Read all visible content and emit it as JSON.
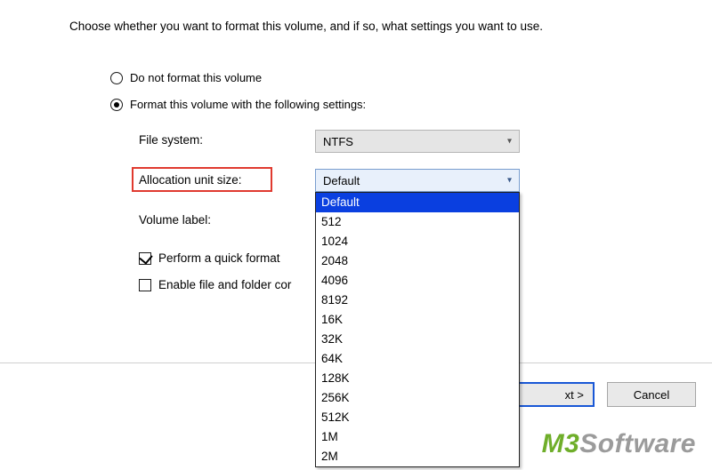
{
  "instruction": "Choose whether you want to format this volume, and if so, what settings you want to use.",
  "radios": {
    "no_format": {
      "label": "Do not format this volume",
      "checked": false
    },
    "do_format": {
      "label": "Format this volume with the following settings:",
      "checked": true
    }
  },
  "fields": {
    "file_system": {
      "label": "File system:",
      "value": "NTFS"
    },
    "allocation": {
      "label": "Allocation unit size:",
      "value": "Default"
    },
    "volume_label": {
      "label": "Volume label:"
    }
  },
  "checks": {
    "quick_format": {
      "label": "Perform a quick format",
      "checked": true
    },
    "compression": {
      "label_visible": "Enable file and folder cor",
      "checked": false
    }
  },
  "dropdown": {
    "selected_index": 0,
    "items": [
      "Default",
      "512",
      "1024",
      "2048",
      "4096",
      "8192",
      "16K",
      "32K",
      "64K",
      "128K",
      "256K",
      "512K",
      "1M",
      "2M"
    ]
  },
  "buttons": {
    "next_visible": "xt >",
    "cancel": "Cancel"
  },
  "watermark": {
    "brand_prefix": "M3",
    "brand_suffix": "Software"
  },
  "colors": {
    "highlight_border": "#e03a2f",
    "selection_bg": "#0a3fe0",
    "selection_fg": "#ffffff",
    "combo_open_bg": "#e8f0fb",
    "combo_open_border": "#7a9ecf",
    "btn_focus_border": "#1857d6",
    "wm_green": "#6fae2a",
    "wm_gray": "#9b9b9b"
  }
}
